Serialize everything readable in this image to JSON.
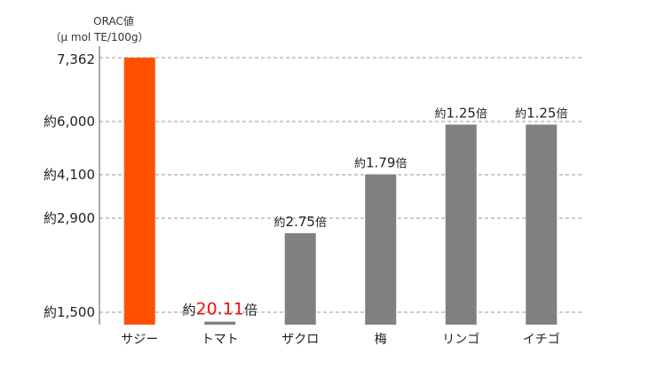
{
  "colors": {
    "highlight": "#ff5000",
    "highlight_text": "#ff6a00",
    "ratio_text": "#ee1111",
    "bar": "#808080",
    "grid": "#999999"
  },
  "chart_data": {
    "type": "bar",
    "ylabel_line1": "ORAC値",
    "ylabel_line2": "（μ mol TE/100g）",
    "categories": [
      "サジー",
      "トマト",
      "ザクロ",
      "梅",
      "リンゴ",
      "イチゴ"
    ],
    "values": [
      7362,
      366,
      2677,
      4113,
      5890,
      5890
    ],
    "highlight_index": 0,
    "y_ticks": [
      {
        "value": 7362,
        "label": "7,362",
        "highlight": true
      },
      {
        "value": 6000,
        "label": "約6,000",
        "highlight": false
      },
      {
        "value": 4100,
        "label": "約4,100",
        "highlight": false
      },
      {
        "value": 2900,
        "label": "約2,900",
        "highlight": false
      },
      {
        "value": 1500,
        "label": "約1,500",
        "highlight": false
      }
    ],
    "data_labels": [
      null,
      {
        "prefix": "約",
        "number": "20.11",
        "suffix": "倍",
        "emphasis": true
      },
      {
        "prefix": "約",
        "number": "2.75",
        "suffix": "倍",
        "emphasis": false
      },
      {
        "prefix": "約",
        "number": "1.79",
        "suffix": "倍",
        "emphasis": false
      },
      {
        "prefix": "約",
        "number": "1.25",
        "suffix": "倍",
        "emphasis": false
      },
      {
        "prefix": "約",
        "number": "1.25",
        "suffix": "倍",
        "emphasis": false
      }
    ],
    "grid": true
  }
}
